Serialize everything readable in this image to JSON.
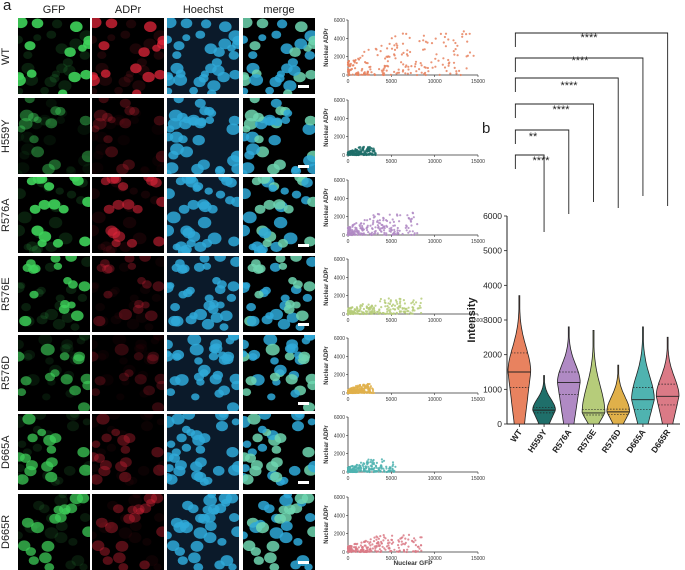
{
  "panel_a_label": "a",
  "panel_b_label": "b",
  "columns": [
    "GFP",
    "ADPr",
    "Hoechst",
    "merge"
  ],
  "rows": [
    "WT",
    "H559Y",
    "R576A",
    "R576E",
    "R576D",
    "D665A",
    "D665R"
  ],
  "chart_data": [
    {
      "type": "scatter",
      "panel": "a",
      "xlabel": "Nuclear GFP",
      "ylabel": "Nuclear ADPr",
      "xlim": [
        0,
        15000
      ],
      "ylim": [
        0,
        6000
      ],
      "xticks": [
        "0",
        "5000",
        "10000",
        "15000"
      ],
      "yticks": [
        "0",
        "2000",
        "4000",
        "6000"
      ],
      "series": [
        {
          "name": "WT",
          "color": "#e8825f",
          "x_range": [
            0,
            14500
          ],
          "y_range": [
            0,
            4800
          ]
        },
        {
          "name": "H559Y",
          "color": "#1f6f6a",
          "x_range": [
            0,
            3200
          ],
          "y_range": [
            0,
            900
          ]
        },
        {
          "name": "R576A",
          "color": "#b08ac4",
          "x_range": [
            0,
            8000
          ],
          "y_range": [
            0,
            2500
          ]
        },
        {
          "name": "R576E",
          "color": "#b6cc7a",
          "x_range": [
            0,
            8500
          ],
          "y_range": [
            0,
            1700
          ]
        },
        {
          "name": "R576D",
          "color": "#e0b04a",
          "x_range": [
            0,
            3000
          ],
          "y_range": [
            0,
            1000
          ]
        },
        {
          "name": "D665A",
          "color": "#4fb3b0",
          "x_range": [
            0,
            5500
          ],
          "y_range": [
            0,
            1400
          ]
        },
        {
          "name": "D665R",
          "color": "#db7a86",
          "x_range": [
            0,
            8500
          ],
          "y_range": [
            0,
            1900
          ]
        }
      ]
    },
    {
      "type": "violin",
      "panel": "b",
      "ylabel": "Intensity",
      "ylim": [
        0,
        6000
      ],
      "yticks": [
        "0",
        "1000",
        "2000",
        "3000",
        "4000",
        "5000",
        "6000"
      ],
      "categories": [
        "WT",
        "H559Y",
        "R576A",
        "R576E",
        "R576D",
        "D665A",
        "D665R"
      ],
      "colors": [
        "#e8825f",
        "#1f6f6a",
        "#b08ac4",
        "#b6cc7a",
        "#e0b04a",
        "#4fb3b0",
        "#db7a86"
      ],
      "median": [
        1500,
        400,
        1200,
        320,
        350,
        700,
        800
      ],
      "q1": [
        1050,
        320,
        850,
        260,
        280,
        420,
        550
      ],
      "q3": [
        2050,
        470,
        1500,
        420,
        430,
        1050,
        1150
      ],
      "max": [
        3700,
        1400,
        2800,
        2700,
        1700,
        2800,
        2500
      ],
      "significance": [
        {
          "from": "WT",
          "to": "H559Y",
          "label": "****"
        },
        {
          "from": "WT",
          "to": "R576A",
          "label": "**"
        },
        {
          "from": "WT",
          "to": "R576E",
          "label": "****"
        },
        {
          "from": "WT",
          "to": "R576D",
          "label": "****"
        },
        {
          "from": "WT",
          "to": "D665A",
          "label": "****"
        },
        {
          "from": "WT",
          "to": "D665R",
          "label": "****"
        }
      ]
    }
  ]
}
